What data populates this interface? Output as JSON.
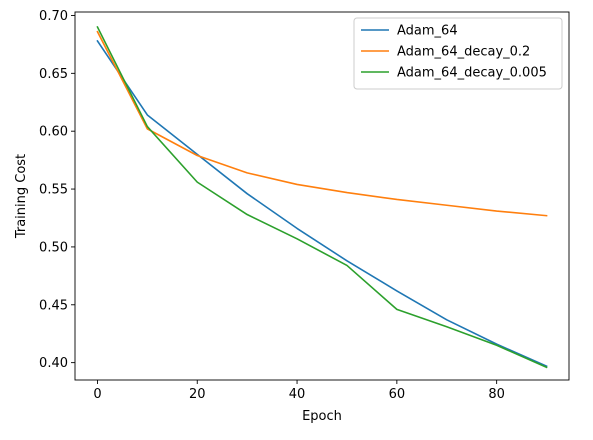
{
  "chart_data": {
    "type": "line",
    "title": "",
    "xlabel": "Epoch",
    "ylabel": "Training Cost",
    "xlim": [
      -4.5,
      94.5
    ],
    "ylim": [
      0.385,
      0.703
    ],
    "xticks": [
      0,
      20,
      40,
      60,
      80
    ],
    "xtick_labels": [
      "0",
      "20",
      "40",
      "60",
      "80"
    ],
    "yticks": [
      0.4,
      0.45,
      0.5,
      0.55,
      0.6,
      0.65,
      0.7
    ],
    "ytick_labels": [
      "0.40",
      "0.45",
      "0.50",
      "0.55",
      "0.60",
      "0.65",
      "0.70"
    ],
    "grid": false,
    "legend_position": "top-right",
    "x": [
      0,
      10,
      20,
      30,
      40,
      50,
      60,
      70,
      80,
      90
    ],
    "series": [
      {
        "name": "Adam_64",
        "color": "#1f77b4",
        "values": [
          0.678,
          0.614,
          0.58,
          0.546,
          0.516,
          0.488,
          0.462,
          0.437,
          0.416,
          0.397
        ]
      },
      {
        "name": "Adam_64_decay_0.2",
        "color": "#ff7f0e",
        "values": [
          0.686,
          0.602,
          0.579,
          0.564,
          0.554,
          0.547,
          0.541,
          0.536,
          0.531,
          0.527
        ]
      },
      {
        "name": "Adam_64_decay_0.005",
        "color": "#2ca02c",
        "values": [
          0.69,
          0.604,
          0.556,
          0.528,
          0.507,
          0.484,
          0.446,
          0.431,
          0.415,
          0.396
        ]
      }
    ]
  }
}
